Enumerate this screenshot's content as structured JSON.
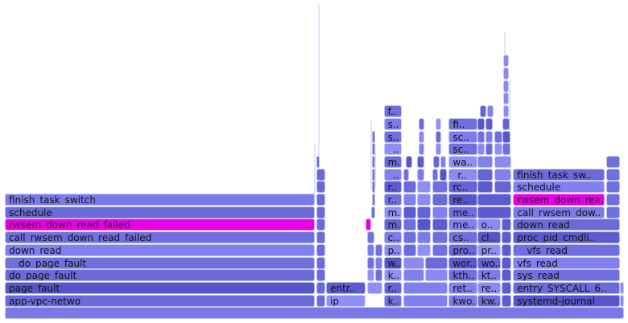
{
  "chart_data": {
    "type": "flamegraph",
    "title": "",
    "units": "percent of total samples",
    "row_order": "bottom-up (row 0 = root)",
    "colors": {
      "base": "#7878e6",
      "highlight": "#e600e6",
      "palette": [
        "#6a6ad8",
        "#7b7bea",
        "#5c5cd0",
        "#8a8af0",
        "#6f6fe0",
        "#5656c8",
        "#8080ee",
        "#9090f4",
        "#7070dc",
        "#6464d4"
      ]
    },
    "frames": [
      {
        "label": "",
        "row": 0,
        "start": 0.0,
        "width": 100.0
      },
      {
        "label": "app-vpc-netwo",
        "row": 1,
        "start": 0.0,
        "width": 50.1
      },
      {
        "label": "ip",
        "row": 1,
        "start": 51.9,
        "width": 6.4
      },
      {
        "label": "k..",
        "row": 1,
        "start": 61.2,
        "width": 2.9
      },
      {
        "label": "kwo..",
        "row": 1,
        "start": 71.7,
        "width": 4.6
      },
      {
        "label": "kw..",
        "row": 1,
        "start": 76.3,
        "width": 3.8
      },
      {
        "label": "systemd-journal",
        "row": 1,
        "start": 82.1,
        "width": 17.3
      },
      {
        "label": "page_fault",
        "row": 2,
        "start": 0.0,
        "width": 50.1
      },
      {
        "label": "entr..",
        "row": 2,
        "start": 51.9,
        "width": 6.4
      },
      {
        "label": "r..",
        "row": 2,
        "start": 61.2,
        "width": 2.9
      },
      {
        "label": "ret..",
        "row": 2,
        "start": 71.7,
        "width": 4.6
      },
      {
        "label": "re..",
        "row": 2,
        "start": 76.3,
        "width": 3.8
      },
      {
        "label": "entry_SYSCALL_6..",
        "row": 2,
        "start": 82.1,
        "width": 17.3
      },
      {
        "label": "do_page_fault",
        "row": 3,
        "start": 0.0,
        "width": 50.1
      },
      {
        "label": "k..",
        "row": 3,
        "start": 61.2,
        "width": 2.9
      },
      {
        "label": "kth..",
        "row": 3,
        "start": 71.7,
        "width": 4.6
      },
      {
        "label": "kt..",
        "row": 3,
        "start": 76.3,
        "width": 3.8
      },
      {
        "label": "sys_read",
        "row": 3,
        "start": 82.1,
        "width": 17.3
      },
      {
        "label": "__do_page_fault",
        "row": 4,
        "start": 0.0,
        "width": 50.1
      },
      {
        "label": "w..",
        "row": 4,
        "start": 61.2,
        "width": 2.9
      },
      {
        "label": "wor..",
        "row": 4,
        "start": 71.7,
        "width": 4.6
      },
      {
        "label": "wo..",
        "row": 4,
        "start": 76.3,
        "width": 3.8
      },
      {
        "label": "vfs_read",
        "row": 4,
        "start": 82.1,
        "width": 17.3
      },
      {
        "label": "down_read",
        "row": 5,
        "start": 0.0,
        "width": 50.1
      },
      {
        "label": "p..",
        "row": 5,
        "start": 61.2,
        "width": 2.9
      },
      {
        "label": "pro..",
        "row": 5,
        "start": 71.7,
        "width": 4.6
      },
      {
        "label": "pr..",
        "row": 5,
        "start": 76.3,
        "width": 3.8
      },
      {
        "label": "__vfs_read",
        "row": 5,
        "start": 82.1,
        "width": 17.3
      },
      {
        "label": "call_rwsem_down_read_failed",
        "row": 6,
        "start": 0.0,
        "width": 50.1
      },
      {
        "label": "c..",
        "row": 6,
        "start": 61.2,
        "width": 2.9
      },
      {
        "label": "cs..",
        "row": 6,
        "start": 71.7,
        "width": 4.6
      },
      {
        "label": "cl..",
        "row": 6,
        "start": 76.3,
        "width": 3.8
      },
      {
        "label": "proc_pid_cmdli..",
        "row": 6,
        "start": 82.1,
        "width": 17.3
      },
      {
        "label": "rwsem_down_read_failed",
        "row": 7,
        "start": 0.0,
        "width": 50.1,
        "highlight": true
      },
      {
        "label": "m..",
        "row": 7,
        "start": 61.2,
        "width": 2.9
      },
      {
        "label": "me..",
        "row": 7,
        "start": 71.7,
        "width": 4.6
      },
      {
        "label": "o..",
        "row": 7,
        "start": 76.3,
        "width": 3.8
      },
      {
        "label": "down_read",
        "row": 7,
        "start": 82.1,
        "width": 17.3
      },
      {
        "label": "schedule",
        "row": 8,
        "start": 0.0,
        "width": 50.1
      },
      {
        "label": "m..",
        "row": 8,
        "start": 61.2,
        "width": 2.9
      },
      {
        "label": "me..",
        "row": 8,
        "start": 71.7,
        "width": 4.6
      },
      {
        "label": "call_rwsem_dow..",
        "row": 8,
        "start": 82.1,
        "width": 14.8
      },
      {
        "label": "finish_task_switch",
        "row": 9,
        "start": 0.0,
        "width": 50.1
      },
      {
        "label": "r..",
        "row": 9,
        "start": 61.2,
        "width": 2.9
      },
      {
        "label": "re..",
        "row": 9,
        "start": 71.7,
        "width": 4.6
      },
      {
        "label": "rwsem_down_rea..",
        "row": 9,
        "start": 82.1,
        "width": 14.8,
        "highlight": true
      },
      {
        "label": "r..",
        "row": 10,
        "start": 61.2,
        "width": 2.9
      },
      {
        "label": "rc..",
        "row": 10,
        "start": 71.7,
        "width": 4.6
      },
      {
        "label": "schedule",
        "row": 10,
        "start": 82.1,
        "width": 14.8
      },
      {
        "label": "_..",
        "row": 11,
        "start": 61.2,
        "width": 2.9
      },
      {
        "label": "_r..",
        "row": 11,
        "start": 71.7,
        "width": 4.6
      },
      {
        "label": "finish_task_sw..",
        "row": 11,
        "start": 82.1,
        "width": 14.8
      },
      {
        "label": "m..",
        "row": 12,
        "start": 61.2,
        "width": 2.9
      },
      {
        "label": "wa..",
        "row": 12,
        "start": 71.7,
        "width": 4.6
      },
      {
        "label": "_..",
        "row": 13,
        "start": 61.2,
        "width": 2.9
      },
      {
        "label": "sc..",
        "row": 13,
        "start": 71.7,
        "width": 4.6
      },
      {
        "label": "s..",
        "row": 14,
        "start": 61.2,
        "width": 2.9
      },
      {
        "label": "sc..",
        "row": 14,
        "start": 71.7,
        "width": 4.6
      },
      {
        "label": "s..",
        "row": 15,
        "start": 61.2,
        "width": 2.9
      },
      {
        "label": "fi..",
        "row": 15,
        "start": 71.7,
        "width": 4.6
      },
      {
        "label": "f..",
        "row": 16,
        "start": 61.2,
        "width": 2.9
      },
      {
        "label": "",
        "row": 1,
        "start": 50.3,
        "width": 1.4
      },
      {
        "label": "",
        "row": 2,
        "start": 50.3,
        "width": 1.4
      },
      {
        "label": "",
        "row": 3,
        "start": 50.3,
        "width": 1.4
      },
      {
        "label": "",
        "row": 4,
        "start": 50.3,
        "width": 1.4
      },
      {
        "label": "",
        "row": 5,
        "start": 50.3,
        "width": 1.4
      },
      {
        "label": "",
        "row": 6,
        "start": 50.3,
        "width": 1.4
      },
      {
        "label": "",
        "row": 7,
        "start": 50.3,
        "width": 1.4
      },
      {
        "label": "",
        "row": 8,
        "start": 50.3,
        "width": 1.4
      },
      {
        "label": "",
        "row": 9,
        "start": 50.3,
        "width": 1.4
      },
      {
        "label": "",
        "row": 10,
        "start": 50.3,
        "width": 1.4
      },
      {
        "label": "",
        "row": 11,
        "start": 50.3,
        "width": 1.4
      },
      {
        "label": "",
        "row": 12,
        "start": 50.3,
        "width": 0.5
      },
      {
        "label": "",
        "row": 2,
        "start": 58.5,
        "width": 2.5
      },
      {
        "label": "",
        "row": 3,
        "start": 58.5,
        "width": 1.2
      },
      {
        "label": "",
        "row": 3,
        "start": 59.8,
        "width": 1.2
      },
      {
        "label": "",
        "row": 4,
        "start": 58.5,
        "width": 1.2
      },
      {
        "label": "",
        "row": 4,
        "start": 59.8,
        "width": 1.2
      },
      {
        "label": "",
        "row": 5,
        "start": 58.5,
        "width": 1.2
      },
      {
        "label": "",
        "row": 5,
        "start": 59.8,
        "width": 1.2
      },
      {
        "label": "",
        "row": 6,
        "start": 58.5,
        "width": 1.2
      },
      {
        "label": "",
        "row": 7,
        "start": 58.3,
        "width": 0.9,
        "highlight": true
      },
      {
        "label": "",
        "row": 8,
        "start": 59.2,
        "width": 0.6
      },
      {
        "label": "",
        "row": 9,
        "start": 59.3,
        "width": 0.5
      },
      {
        "label": "",
        "row": 10,
        "start": 59.3,
        "width": 0.5
      },
      {
        "label": "",
        "row": 11,
        "start": 59.3,
        "width": 0.5
      },
      {
        "label": "",
        "row": 12,
        "start": 59.3,
        "width": 0.5
      },
      {
        "label": "",
        "row": 13,
        "start": 59.3,
        "width": 0.5
      },
      {
        "label": "",
        "row": 14,
        "start": 59.3,
        "width": 0.5
      },
      {
        "label": "",
        "row": 1,
        "start": 64.3,
        "width": 7.2
      },
      {
        "label": "",
        "row": 2,
        "start": 64.3,
        "width": 7.2
      },
      {
        "label": "",
        "row": 3,
        "start": 64.3,
        "width": 3.5
      },
      {
        "label": "",
        "row": 3,
        "start": 67.9,
        "width": 3.6
      },
      {
        "label": "",
        "row": 4,
        "start": 64.3,
        "width": 3.5
      },
      {
        "label": "",
        "row": 4,
        "start": 67.9,
        "width": 3.6
      },
      {
        "label": "",
        "row": 5,
        "start": 64.3,
        "width": 2.2
      },
      {
        "label": "",
        "row": 5,
        "start": 66.6,
        "width": 2.2
      },
      {
        "label": "",
        "row": 5,
        "start": 69.0,
        "width": 2.5
      },
      {
        "label": "",
        "row": 6,
        "start": 64.3,
        "width": 2.2
      },
      {
        "label": "",
        "row": 6,
        "start": 66.6,
        "width": 2.2
      },
      {
        "label": "",
        "row": 6,
        "start": 69.0,
        "width": 2.5
      },
      {
        "label": "",
        "row": 7,
        "start": 64.3,
        "width": 2.2
      },
      {
        "label": "",
        "row": 7,
        "start": 66.6,
        "width": 2.2
      },
      {
        "label": "",
        "row": 7,
        "start": 69.0,
        "width": 2.5
      },
      {
        "label": "",
        "row": 8,
        "start": 64.3,
        "width": 2.2
      },
      {
        "label": "",
        "row": 8,
        "start": 66.6,
        "width": 2.2
      },
      {
        "label": "",
        "row": 8,
        "start": 69.0,
        "width": 2.5
      },
      {
        "label": "",
        "row": 9,
        "start": 64.3,
        "width": 2.2
      },
      {
        "label": "",
        "row": 9,
        "start": 66.6,
        "width": 2.2
      },
      {
        "label": "",
        "row": 9,
        "start": 69.0,
        "width": 2.5
      },
      {
        "label": "",
        "row": 10,
        "start": 64.3,
        "width": 2.2
      },
      {
        "label": "",
        "row": 10,
        "start": 66.6,
        "width": 2.2
      },
      {
        "label": "",
        "row": 10,
        "start": 69.0,
        "width": 2.5
      },
      {
        "label": "",
        "row": 11,
        "start": 64.3,
        "width": 1.0
      },
      {
        "label": "",
        "row": 11,
        "start": 66.6,
        "width": 1.2
      },
      {
        "label": "",
        "row": 11,
        "start": 69.0,
        "width": 1.0
      },
      {
        "label": "",
        "row": 11,
        "start": 70.2,
        "width": 1.2
      },
      {
        "label": "",
        "row": 12,
        "start": 64.8,
        "width": 1.0
      },
      {
        "label": "",
        "row": 12,
        "start": 66.6,
        "width": 1.2
      },
      {
        "label": "",
        "row": 12,
        "start": 69.2,
        "width": 1.0
      },
      {
        "label": "",
        "row": 12,
        "start": 70.3,
        "width": 1.0
      },
      {
        "label": "",
        "row": 13,
        "start": 66.8,
        "width": 1.0
      },
      {
        "label": "",
        "row": 13,
        "start": 69.5,
        "width": 1.0
      },
      {
        "label": "",
        "row": 14,
        "start": 66.8,
        "width": 1.0
      },
      {
        "label": "",
        "row": 14,
        "start": 69.5,
        "width": 1.0
      },
      {
        "label": "",
        "row": 15,
        "start": 66.8,
        "width": 1.0
      },
      {
        "label": "",
        "row": 15,
        "start": 69.5,
        "width": 1.0
      },
      {
        "label": "",
        "row": 1,
        "start": 80.2,
        "width": 1.6
      },
      {
        "label": "",
        "row": 2,
        "start": 80.2,
        "width": 1.6
      },
      {
        "label": "",
        "row": 3,
        "start": 80.2,
        "width": 1.6
      },
      {
        "label": "",
        "row": 4,
        "start": 80.2,
        "width": 1.6
      },
      {
        "label": "",
        "row": 5,
        "start": 80.2,
        "width": 1.6
      },
      {
        "label": "",
        "row": 6,
        "start": 80.2,
        "width": 1.6
      },
      {
        "label": "",
        "row": 7,
        "start": 80.2,
        "width": 1.6
      },
      {
        "label": "",
        "row": 8,
        "start": 76.3,
        "width": 5.5
      },
      {
        "label": "",
        "row": 9,
        "start": 76.3,
        "width": 5.5
      },
      {
        "label": "",
        "row": 10,
        "start": 76.3,
        "width": 2.5
      },
      {
        "label": "",
        "row": 10,
        "start": 79.0,
        "width": 2.8
      },
      {
        "label": "",
        "row": 11,
        "start": 76.3,
        "width": 2.5
      },
      {
        "label": "",
        "row": 11,
        "start": 79.0,
        "width": 2.8
      },
      {
        "label": "",
        "row": 12,
        "start": 76.3,
        "width": 2.5
      },
      {
        "label": "",
        "row": 12,
        "start": 79.0,
        "width": 2.8
      },
      {
        "label": "",
        "row": 13,
        "start": 76.3,
        "width": 1.2
      },
      {
        "label": "",
        "row": 13,
        "start": 77.6,
        "width": 1.2
      },
      {
        "label": "",
        "row": 13,
        "start": 79.0,
        "width": 1.3
      },
      {
        "label": "",
        "row": 13,
        "start": 80.4,
        "width": 1.3
      },
      {
        "label": "",
        "row": 14,
        "start": 76.3,
        "width": 1.2
      },
      {
        "label": "",
        "row": 14,
        "start": 77.6,
        "width": 1.2
      },
      {
        "label": "",
        "row": 14,
        "start": 79.0,
        "width": 1.3
      },
      {
        "label": "",
        "row": 14,
        "start": 80.4,
        "width": 1.3
      },
      {
        "label": "",
        "row": 15,
        "start": 76.3,
        "width": 1.2
      },
      {
        "label": "",
        "row": 15,
        "start": 77.6,
        "width": 1.2
      },
      {
        "label": "",
        "row": 15,
        "start": 80.4,
        "width": 1.2
      },
      {
        "label": "",
        "row": 16,
        "start": 76.7,
        "width": 1.1
      },
      {
        "label": "",
        "row": 16,
        "start": 77.9,
        "width": 1.0
      },
      {
        "label": "",
        "row": 16,
        "start": 80.5,
        "width": 0.9
      },
      {
        "label": "",
        "row": 17,
        "start": 80.5,
        "width": 0.9
      },
      {
        "label": "",
        "row": 18,
        "start": 80.5,
        "width": 0.9
      },
      {
        "label": "",
        "row": 19,
        "start": 80.5,
        "width": 0.9
      },
      {
        "label": "",
        "row": 20,
        "start": 80.5,
        "width": 0.9
      },
      {
        "label": "",
        "row": 1,
        "start": 99.4,
        "width": 0.6
      },
      {
        "label": "",
        "row": 2,
        "start": 99.4,
        "width": 0.6
      },
      {
        "label": "",
        "row": 8,
        "start": 97.1,
        "width": 2.3
      },
      {
        "label": "",
        "row": 9,
        "start": 97.1,
        "width": 2.3
      },
      {
        "label": "",
        "row": 10,
        "start": 97.1,
        "width": 2.3
      },
      {
        "label": "",
        "row": 11,
        "start": 97.1,
        "width": 2.3
      },
      {
        "label": "",
        "row": 12,
        "start": 97.1,
        "width": 2.3
      }
    ]
  }
}
